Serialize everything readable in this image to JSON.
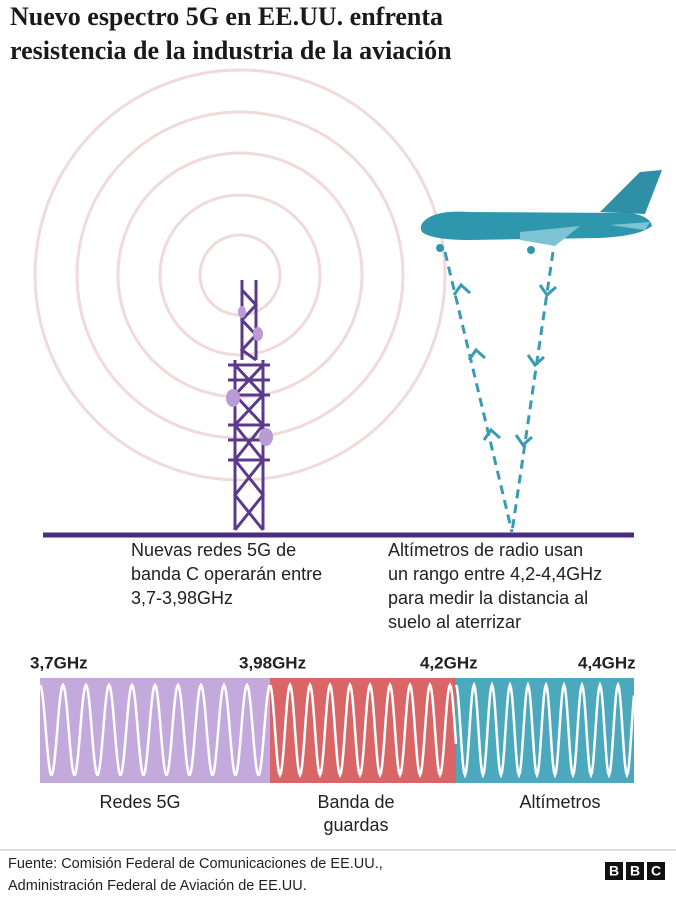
{
  "header": {
    "title_lines": [
      "Nuevo espectro 5G en EE.UU. enfrenta",
      "resistencia de la industria de la aviación"
    ]
  },
  "captions": {
    "tower": [
      "Nuevas redes 5G de",
      "banda C operarán entre",
      "3,7-3,98GHz"
    ],
    "altimeter": [
      "Altímetros de radio usan",
      "un rango entre 4,2-4,4GHz",
      "para medir la distancia al",
      "suelo al aterrizar"
    ]
  },
  "spectrum": {
    "frequencies": [
      "3,7GHz",
      "3,98GHz",
      "4,2GHz",
      "4,4GHz"
    ],
    "bands": [
      {
        "label_lines": [
          "Redes 5G"
        ]
      },
      {
        "label_lines": [
          "Banda de",
          "guardas"
        ]
      },
      {
        "label_lines": [
          "Altímetros"
        ]
      }
    ]
  },
  "footer": {
    "source_lines": [
      "Fuente: Comisión Federal de Comunicaciones de EE.UU.,",
      "Administración Federal de Aviación de EE.UU."
    ],
    "logo_letters": [
      "B",
      "B",
      "C"
    ]
  }
}
